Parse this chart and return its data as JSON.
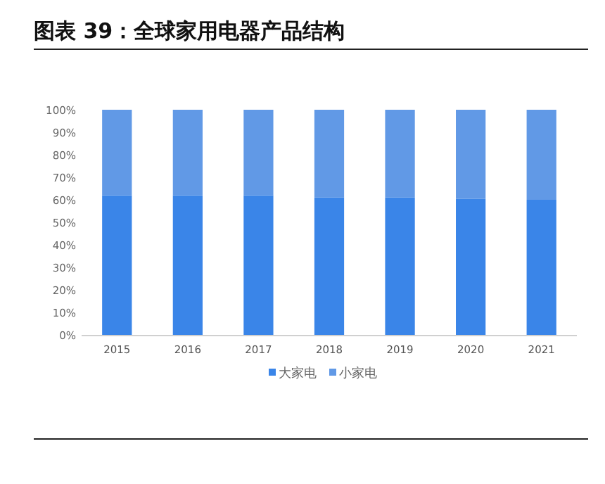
{
  "chart_data": {
    "type": "bar",
    "title": "图表 39：全球家用电器产品结构",
    "stacked": true,
    "categories": [
      "2015",
      "2016",
      "2017",
      "2018",
      "2019",
      "2020",
      "2021"
    ],
    "series": [
      {
        "name": "大家电",
        "color": "#3a85e8",
        "values": [
          62,
          62,
          62,
          61,
          61,
          60.5,
          60
        ]
      },
      {
        "name": "小家电",
        "color": "#6199e6",
        "values": [
          38,
          38,
          38,
          39,
          39,
          39.5,
          40
        ]
      }
    ],
    "ylim": [
      0,
      100
    ],
    "yticks": [
      {
        "value": 0,
        "label": "0%"
      },
      {
        "value": 10,
        "label": "10%"
      },
      {
        "value": 20,
        "label": "20%"
      },
      {
        "value": 30,
        "label": "30%"
      },
      {
        "value": 40,
        "label": "40%"
      },
      {
        "value": 50,
        "label": "50%"
      },
      {
        "value": 60,
        "label": "60%"
      },
      {
        "value": 70,
        "label": "70%"
      },
      {
        "value": 80,
        "label": "80%"
      },
      {
        "value": 90,
        "label": "90%"
      },
      {
        "value": 100,
        "label": "100%"
      }
    ],
    "legend": "bottom"
  }
}
